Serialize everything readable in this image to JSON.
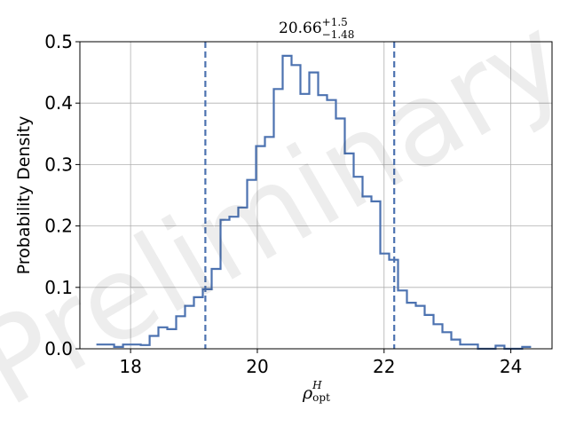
{
  "chart_data": {
    "type": "histogram",
    "title": {
      "base": "20.66",
      "sup": "+1.5",
      "sub": "−1.48"
    },
    "xlabel": {
      "base": "ρ",
      "sup": "H",
      "sub": "opt"
    },
    "ylabel": "Probability Density",
    "watermark": "Preliminary",
    "xlim": [
      17.2,
      24.65
    ],
    "ylim": [
      0,
      0.5
    ],
    "xticks": [
      18,
      20,
      22,
      24
    ],
    "yticks": [
      0.0,
      0.1,
      0.2,
      0.3,
      0.4,
      0.5
    ],
    "grid": true,
    "series_color": "#4c72b0",
    "bins_left": [
      17.46,
      17.6,
      17.74,
      17.88,
      18.02,
      18.16,
      18.3,
      18.44,
      18.58,
      18.72,
      18.86,
      19.0,
      19.14,
      19.28,
      19.42,
      19.56,
      19.7,
      19.84,
      19.98,
      20.12,
      20.26,
      20.4,
      20.54,
      20.68,
      20.82,
      20.96,
      21.1,
      21.24,
      21.38,
      21.52,
      21.66,
      21.8,
      21.94,
      22.08,
      22.22,
      22.36,
      22.5,
      22.64,
      22.78,
      22.92,
      23.06,
      23.2,
      23.34,
      23.48,
      23.62,
      23.76,
      23.9,
      24.04,
      24.18
    ],
    "bin_width": 0.14,
    "density": [
      0.007,
      0.007,
      0.003,
      0.007,
      0.007,
      0.006,
      0.021,
      0.035,
      0.032,
      0.053,
      0.07,
      0.084,
      0.097,
      0.13,
      0.21,
      0.215,
      0.23,
      0.275,
      0.33,
      0.345,
      0.423,
      0.477,
      0.462,
      0.415,
      0.45,
      0.413,
      0.405,
      0.375,
      0.318,
      0.28,
      0.248,
      0.24,
      0.155,
      0.145,
      0.095,
      0.075,
      0.07,
      0.055,
      0.04,
      0.027,
      0.015,
      0.007,
      0.007,
      0.0,
      0.0,
      0.005,
      0.0,
      0.0,
      0.003
    ],
    "vlines": [
      19.18,
      22.16
    ]
  }
}
